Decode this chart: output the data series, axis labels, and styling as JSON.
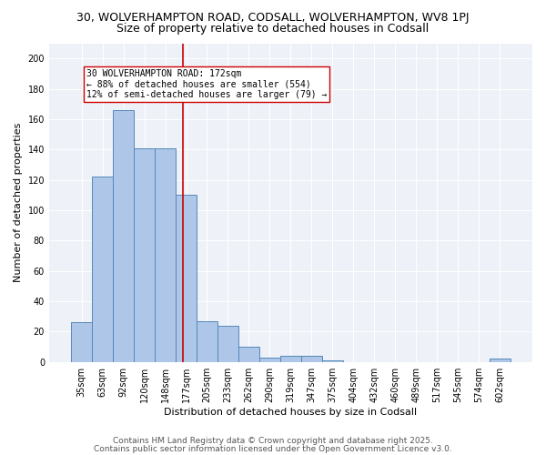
{
  "title1": "30, WOLVERHAMPTON ROAD, CODSALL, WOLVERHAMPTON, WV8 1PJ",
  "title2": "Size of property relative to detached houses in Codsall",
  "xlabel": "Distribution of detached houses by size in Codsall",
  "ylabel": "Number of detached properties",
  "bar_labels": [
    "35sqm",
    "63sqm",
    "92sqm",
    "120sqm",
    "148sqm",
    "177sqm",
    "205sqm",
    "233sqm",
    "262sqm",
    "290sqm",
    "319sqm",
    "347sqm",
    "375sqm",
    "404sqm",
    "432sqm",
    "460sqm",
    "489sqm",
    "517sqm",
    "545sqm",
    "574sqm",
    "602sqm"
  ],
  "bar_values": [
    26,
    122,
    166,
    141,
    141,
    110,
    27,
    24,
    10,
    3,
    4,
    4,
    1,
    0,
    0,
    0,
    0,
    0,
    0,
    0,
    2
  ],
  "bar_color": "#aec6e8",
  "bar_edge_color": "#5588bb",
  "vline_color": "#cc0000",
  "annotation_text": "30 WOLVERHAMPTON ROAD: 172sqm\n← 88% of detached houses are smaller (554)\n12% of semi-detached houses are larger (79) →",
  "annotation_box_color": "#ffffff",
  "annotation_box_edge": "#cc0000",
  "ylim": [
    0,
    210
  ],
  "yticks": [
    0,
    20,
    40,
    60,
    80,
    100,
    120,
    140,
    160,
    180,
    200
  ],
  "background_color": "#eef2f8",
  "footer1": "Contains HM Land Registry data © Crown copyright and database right 2025.",
  "footer2": "Contains public sector information licensed under the Open Government Licence v3.0.",
  "title1_fontsize": 9,
  "title2_fontsize": 9,
  "axis_label_fontsize": 8,
  "tick_fontsize": 7,
  "annotation_fontsize": 7,
  "footer_fontsize": 6.5
}
